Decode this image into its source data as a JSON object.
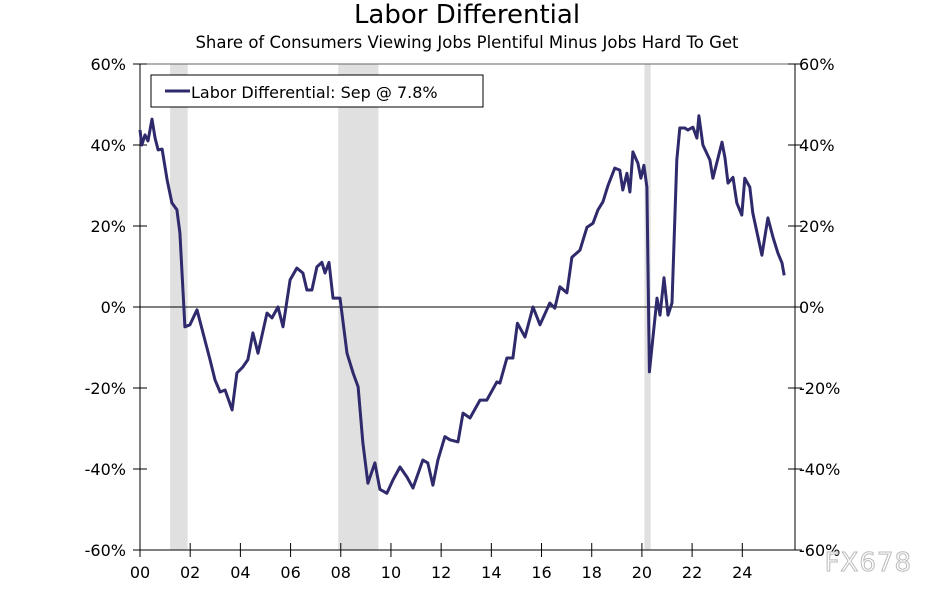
{
  "chart_data": {
    "type": "line",
    "title": "Labor Differential",
    "subtitle": "Share of Consumers Viewing Jobs Plentiful Minus Jobs Hard To Get",
    "xlabel": "",
    "ylabel": "",
    "xlim": [
      2000,
      2026.1
    ],
    "ylim": [
      -60,
      60
    ],
    "x_ticks": [
      {
        "v": 2000,
        "label": "00"
      },
      {
        "v": 2002,
        "label": "02"
      },
      {
        "v": 2004,
        "label": "04"
      },
      {
        "v": 2006,
        "label": "06"
      },
      {
        "v": 2008,
        "label": "08"
      },
      {
        "v": 2010,
        "label": "10"
      },
      {
        "v": 2012,
        "label": "12"
      },
      {
        "v": 2014,
        "label": "14"
      },
      {
        "v": 2016,
        "label": "16"
      },
      {
        "v": 2018,
        "label": "18"
      },
      {
        "v": 2020,
        "label": "20"
      },
      {
        "v": 2022,
        "label": "22"
      },
      {
        "v": 2024,
        "label": "24"
      }
    ],
    "y_ticks": [
      {
        "v": 60,
        "label": "60%"
      },
      {
        "v": 40,
        "label": "40%"
      },
      {
        "v": 20,
        "label": "20%"
      },
      {
        "v": 0,
        "label": "0%"
      },
      {
        "v": -20,
        "label": "-20%"
      },
      {
        "v": -40,
        "label": "-40%"
      },
      {
        "v": -60,
        "label": "-60%"
      }
    ],
    "grid": false,
    "zero_line": true,
    "legend_position": "top-left",
    "recessions": [
      [
        2001.2,
        2001.9
      ],
      [
        2007.9,
        2009.5
      ],
      [
        2020.1,
        2020.35
      ]
    ],
    "colors": {
      "line": "#2e2a6b",
      "recession": "#e0e0e0"
    },
    "series": [
      {
        "name": "Labor Differential: Sep @ 7.8%",
        "x": [
          2000.0,
          2000.07,
          2000.2,
          2000.32,
          2000.48,
          2000.6,
          2000.72,
          2000.88,
          2001.08,
          2001.27,
          2001.47,
          2001.59,
          2001.79,
          2001.99,
          2002.27,
          2002.51,
          2002.79,
          2002.99,
          2003.19,
          2003.39,
          2003.67,
          2003.86,
          2004.1,
          2004.3,
          2004.5,
          2004.7,
          2005.06,
          2005.26,
          2005.5,
          2005.7,
          2005.98,
          2006.25,
          2006.49,
          2006.65,
          2006.85,
          2007.05,
          2007.25,
          2007.37,
          2007.53,
          2007.69,
          2007.97,
          2008.25,
          2008.49,
          2008.69,
          2008.88,
          2009.08,
          2009.36,
          2009.56,
          2009.84,
          2010.08,
          2010.36,
          2010.64,
          2010.88,
          2011.27,
          2011.47,
          2011.67,
          2011.87,
          2012.15,
          2012.35,
          2012.67,
          2012.87,
          2013.15,
          2013.55,
          2013.82,
          2014.22,
          2014.34,
          2014.62,
          2014.86,
          2015.04,
          2015.34,
          2015.66,
          2015.94,
          2016.33,
          2016.53,
          2016.73,
          2017.01,
          2017.21,
          2017.53,
          2017.81,
          2018.05,
          2018.25,
          2018.45,
          2018.65,
          2018.92,
          2019.12,
          2019.24,
          2019.4,
          2019.52,
          2019.64,
          2019.84,
          2019.96,
          2020.08,
          2020.2,
          2020.3,
          2020.6,
          2020.72,
          2020.88,
          2021.04,
          2021.2,
          2021.39,
          2021.51,
          2021.71,
          2021.83,
          2022.03,
          2022.19,
          2022.27,
          2022.43,
          2022.71,
          2022.83,
          2023.19,
          2023.31,
          2023.43,
          2023.63,
          2023.78,
          2023.98,
          2024.1,
          2024.3,
          2024.42,
          2024.78,
          2025.02,
          2025.22,
          2025.42,
          2025.58,
          2025.67
        ],
        "y": [
          43.7,
          40,
          42.5,
          41,
          46.4,
          41.7,
          38.8,
          39,
          31.4,
          25.7,
          24,
          18.3,
          -4.9,
          -4.4,
          -0.7,
          -6.4,
          -13,
          -18,
          -21,
          -20.5,
          -25.4,
          -16.3,
          -14.8,
          -13,
          -6.4,
          -11.4,
          -1.5,
          -2.7,
          0,
          -4.9,
          6.7,
          9.6,
          8.4,
          4.2,
          4.2,
          9.9,
          11,
          8.4,
          11,
          2.2,
          2.2,
          -11.4,
          -16.3,
          -19.7,
          -33.6,
          -43.5,
          -38.5,
          -45,
          -46,
          -42.7,
          -39.5,
          -42,
          -44.7,
          -37.8,
          -38.5,
          -44,
          -37.8,
          -32,
          -32.8,
          -33.3,
          -26.2,
          -27.4,
          -23,
          -23,
          -18.5,
          -18.8,
          -12.6,
          -12.6,
          -4,
          -7.4,
          0,
          -4.4,
          1,
          -0.3,
          5,
          3.5,
          12.3,
          14,
          19.7,
          20.7,
          24,
          26,
          30,
          34.3,
          33.8,
          28.9,
          33,
          28.4,
          38.3,
          35.5,
          31.8,
          35,
          29.6,
          -16,
          2.2,
          -2,
          7.2,
          -2,
          1,
          36.3,
          44.2,
          44.2,
          43.7,
          44.4,
          41.7,
          47.2,
          40,
          36.3,
          31.8,
          40.7,
          36.8,
          30.6,
          32,
          25.7,
          22.7,
          31.8,
          29.6,
          23.2,
          12.8,
          22,
          17.3,
          13.3,
          10.9,
          7.8
        ]
      }
    ]
  },
  "watermark": "FX678"
}
